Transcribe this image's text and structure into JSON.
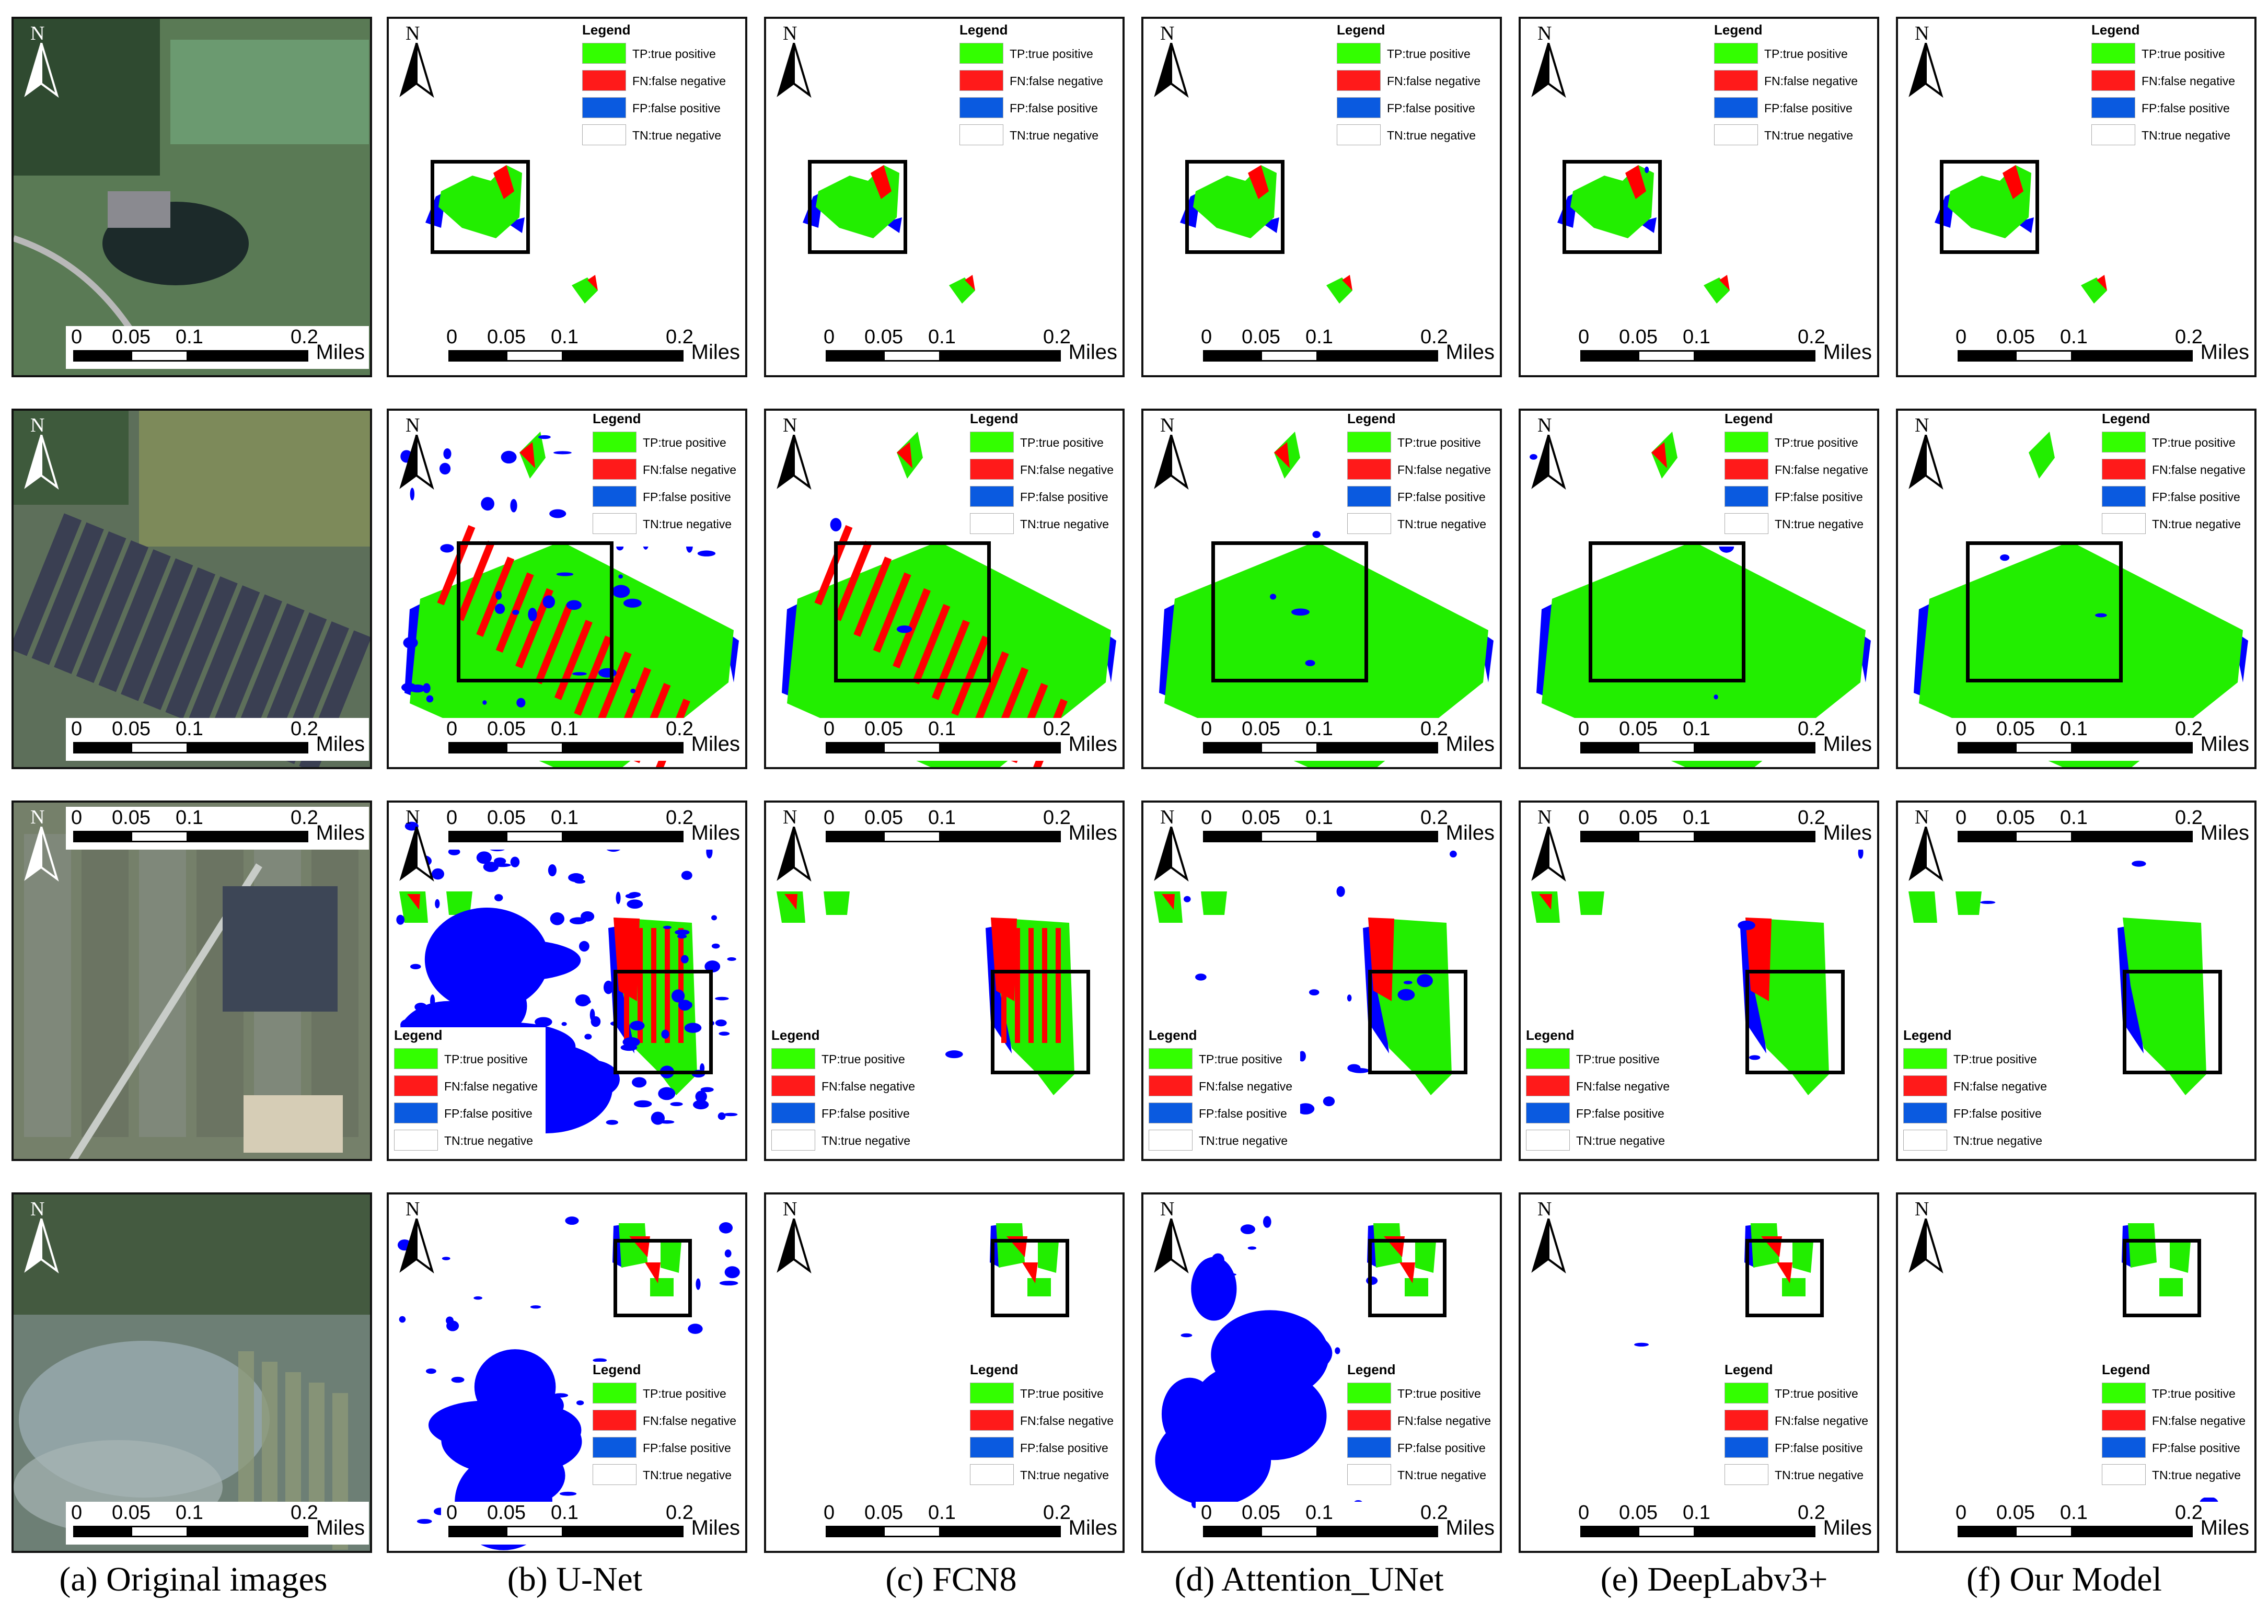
{
  "north_label": "N",
  "scale_bar": {
    "ticks": [
      "0",
      "0.05",
      "0.1",
      "0.2"
    ],
    "unit": "Miles"
  },
  "legend": {
    "title": "Legend",
    "items": [
      {
        "label": "TP:true positive",
        "color": "#33ff00"
      },
      {
        "label": "FN:false negative",
        "color": "#ff1a1a"
      },
      {
        "label": "FP:false positive",
        "color": "#0a5ae0"
      },
      {
        "label": "TN:true negative",
        "color": "#ffffff"
      }
    ]
  },
  "colors": {
    "tp": "#22ee00",
    "fn": "#ff0000",
    "fp": "#0000ff",
    "tn": "#ffffff"
  },
  "captions": [
    "(a) Original images",
    "(b) U-Net",
    "(c) FCN8",
    "(d) Attention_UNet",
    "(e) DeepLabv3+",
    "(f) Our Model"
  ]
}
